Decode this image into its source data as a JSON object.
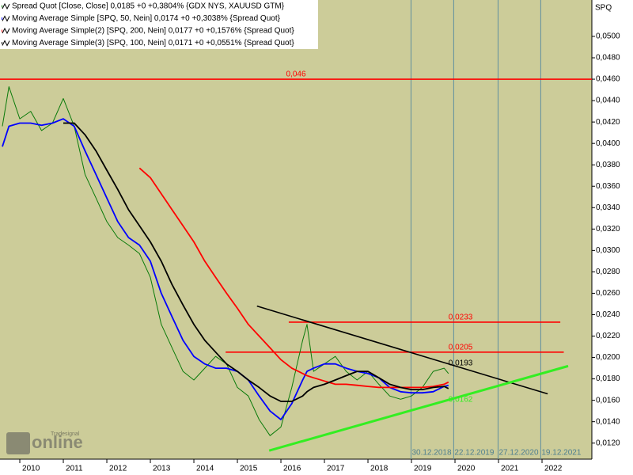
{
  "chart_data": {
    "type": "line",
    "y_label": "SPQ",
    "logo": {
      "brand": "Tradesignal",
      "text": "online"
    },
    "x": [
      2009.6,
      2009.75,
      2010,
      2010.25,
      2010.5,
      2010.75,
      2011,
      2011.25,
      2011.5,
      2011.75,
      2012,
      2012.25,
      2012.5,
      2012.75,
      2013,
      2013.25,
      2013.5,
      2013.75,
      2014,
      2014.25,
      2014.5,
      2014.75,
      2015,
      2015.25,
      2015.5,
      2015.75,
      2016,
      2016.25,
      2016.5,
      2016.6,
      2016.75,
      2017,
      2017.25,
      2017.5,
      2017.75,
      2018,
      2018.25,
      2018.5,
      2018.75,
      2019,
      2019.25,
      2019.5,
      2019.75,
      2019.85
    ],
    "series": [
      {
        "name": "Spread Quot [Close, Close] 0,0185 +0 +0,3804% {GDX NYS, XAUUSD GTM}",
        "color": "#0a7a0a",
        "values": [
          0.0416,
          0.0453,
          0.0423,
          0.043,
          0.0412,
          0.0419,
          0.0442,
          0.0416,
          0.0371,
          0.0349,
          0.0327,
          0.0312,
          0.0305,
          0.0297,
          0.0275,
          0.0231,
          0.0209,
          0.0187,
          0.0179,
          0.019,
          0.0201,
          0.0194,
          0.0172,
          0.0164,
          0.0142,
          0.0127,
          0.0135,
          0.0172,
          0.0216,
          0.0231,
          0.0187,
          0.0194,
          0.0201,
          0.0187,
          0.0179,
          0.0187,
          0.0175,
          0.0164,
          0.0161,
          0.0164,
          0.0172,
          0.0187,
          0.019,
          0.0185
        ]
      },
      {
        "name": "Moving Average Simple [SPQ, 50, Nein] 0,0174 +0 +0,3038% {Spread Quot}",
        "color": "#0000ff",
        "values": [
          0.0397,
          0.0416,
          0.0419,
          0.0419,
          0.0417,
          0.0419,
          0.0423,
          0.0416,
          0.0393,
          0.0371,
          0.0349,
          0.0327,
          0.0312,
          0.0305,
          0.029,
          0.026,
          0.0238,
          0.0216,
          0.0201,
          0.0194,
          0.019,
          0.019,
          0.0187,
          0.0179,
          0.0164,
          0.015,
          0.0142,
          0.0157,
          0.0179,
          0.0187,
          0.019,
          0.0194,
          0.0194,
          0.019,
          0.0187,
          0.0185,
          0.0181,
          0.0172,
          0.0168,
          0.0167,
          0.0167,
          0.0168,
          0.0173,
          0.0174
        ]
      },
      {
        "name": "Moving Average Simple(2) [SPQ, 200, Nein] 0,0177 +0 +0,1576% {Spread Quot}",
        "color": "#ff0000",
        "values": [
          null,
          null,
          null,
          null,
          null,
          null,
          null,
          null,
          null,
          null,
          null,
          null,
          null,
          0.0377,
          0.0368,
          0.0353,
          0.0338,
          0.0323,
          0.0308,
          0.029,
          0.0275,
          0.026,
          0.0246,
          0.0231,
          0.022,
          0.0209,
          0.0198,
          0.019,
          0.0185,
          0.0183,
          0.0181,
          0.0178,
          0.0175,
          0.0175,
          0.0174,
          0.0173,
          0.0172,
          0.0172,
          0.0172,
          0.0172,
          0.0172,
          0.0173,
          0.0175,
          0.0177
        ]
      },
      {
        "name": "Moving Average Simple(3) [SPQ, 100, Nein] 0,0171 +0 +0,0551% {Spread Quot}",
        "color": "#000000",
        "values": [
          null,
          null,
          null,
          null,
          null,
          null,
          0.0419,
          0.0419,
          0.0408,
          0.0393,
          0.0375,
          0.0357,
          0.0338,
          0.0323,
          0.0308,
          0.029,
          0.0268,
          0.0249,
          0.0231,
          0.0216,
          0.0205,
          0.0194,
          0.0187,
          0.0179,
          0.0172,
          0.0164,
          0.0159,
          0.0159,
          0.0164,
          0.0168,
          0.0172,
          0.0175,
          0.0179,
          0.0183,
          0.0187,
          0.0187,
          0.0181,
          0.0175,
          0.0172,
          0.017,
          0.017,
          0.0172,
          0.0173,
          0.0171
        ]
      }
    ],
    "hlines": [
      {
        "value": 0.046,
        "label": "0,046",
        "color": "#ff0000"
      },
      {
        "value": 0.0233,
        "label": "0,0233",
        "color": "#ff0000",
        "x": [
          2016.18,
          2022.42
        ]
      },
      {
        "value": 0.0205,
        "label": "0,0205",
        "color": "#ff0000",
        "x": [
          2014.73,
          2022.5
        ]
      }
    ],
    "trendlines": [
      {
        "x": [
          2015.45,
          2022.13
        ],
        "values": [
          0.0248,
          0.0166
        ],
        "color": "#000000",
        "label": "0,0193",
        "label_value": 0.0193
      },
      {
        "x": [
          2015.73,
          2022.6
        ],
        "values": [
          0.0113,
          0.0192
        ],
        "color": "#33ee22",
        "label": "0,0162",
        "label_value": 0.0162
      }
    ],
    "vlines": [
      {
        "x": 2018.99,
        "label": "30.12.2018"
      },
      {
        "x": 2019.97,
        "label": "22.12.2019"
      },
      {
        "x": 2020.99,
        "label": "27.12.2020"
      },
      {
        "x": 2021.97,
        "label": "19.12.2021"
      }
    ],
    "xlim": [
      2009.545,
      2023.145
    ],
    "xticks": [
      2010,
      2011,
      2012,
      2013,
      2014,
      2015,
      2016,
      2017,
      2018,
      2019,
      2020,
      2021,
      2022
    ],
    "ylim": [
      0.0105,
      0.0534
    ],
    "yticks": [
      {
        "value": 0.012,
        "label": "0,0120"
      },
      {
        "value": 0.014,
        "label": "0,0140"
      },
      {
        "value": 0.016,
        "label": "0,0160"
      },
      {
        "value": 0.018,
        "label": "0,0180"
      },
      {
        "value": 0.02,
        "label": "0,0200"
      },
      {
        "value": 0.022,
        "label": "0,0220"
      },
      {
        "value": 0.024,
        "label": "0,0240"
      },
      {
        "value": 0.026,
        "label": "0,0260"
      },
      {
        "value": 0.028,
        "label": "0,0280"
      },
      {
        "value": 0.03,
        "label": "0,0300"
      },
      {
        "value": 0.032,
        "label": "0,0320"
      },
      {
        "value": 0.034,
        "label": "0,0340"
      },
      {
        "value": 0.036,
        "label": "0,0360"
      },
      {
        "value": 0.038,
        "label": "0,0380"
      },
      {
        "value": 0.04,
        "label": "0,0400"
      },
      {
        "value": 0.042,
        "label": "0,0420"
      },
      {
        "value": 0.044,
        "label": "0,0440"
      },
      {
        "value": 0.046,
        "label": "0,0460"
      },
      {
        "value": 0.048,
        "label": "0,0480"
      },
      {
        "value": 0.05,
        "label": "0,0500"
      }
    ],
    "background": "#cccc99",
    "vline_color": "#5f8f9f"
  }
}
